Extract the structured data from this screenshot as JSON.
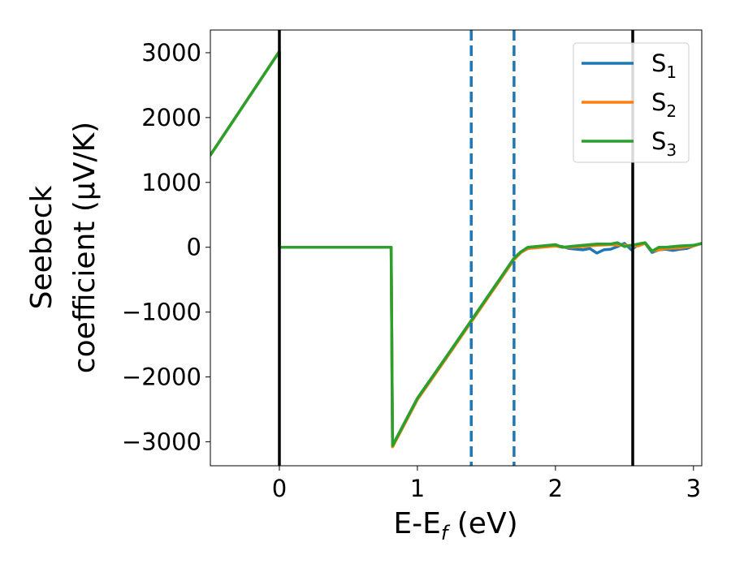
{
  "chart_data": {
    "type": "line",
    "xlabel_main": "E-E",
    "xlabel_sub": "f",
    "xlabel_unit": " (eV)",
    "ylabel_line1": "Seebeck",
    "ylabel_line2": "coefficient  (μV/K)",
    "xlim": [
      -0.5,
      3.06
    ],
    "ylim": [
      -3370,
      3350
    ],
    "x_ticks": [
      0,
      1,
      2,
      3
    ],
    "x_tick_labels": [
      "0",
      "1",
      "2",
      "3"
    ],
    "y_ticks": [
      3000,
      2000,
      1000,
      0,
      -1000,
      -2000,
      -3000
    ],
    "y_tick_labels": [
      "3000",
      "2000",
      "1000",
      "0",
      "−1000",
      "−2000",
      "−3000"
    ],
    "grid": false,
    "legend_position": "top-right",
    "vlines_solid": [
      0,
      2.56
    ],
    "vlines_dashed": [
      1.39,
      1.7
    ],
    "vline_solid_color": "#000000",
    "vline_dashed_color": "#1f77b4",
    "series": [
      {
        "name": "S",
        "name_sub": "1",
        "color": "#1f77b4",
        "x": [
          -0.5,
          0,
          0,
          0.81,
          0.82,
          1.0,
          1.2,
          1.4,
          1.6,
          1.7,
          1.75,
          1.8,
          1.9,
          2.0,
          2.05,
          2.1,
          2.2,
          2.25,
          2.3,
          2.35,
          2.4,
          2.45,
          2.5,
          2.55,
          2.6,
          2.65,
          2.7,
          2.75,
          2.8,
          2.85,
          2.9,
          2.95,
          3.0,
          3.06
        ],
        "y": [
          1420,
          3020,
          0,
          0,
          -3060,
          -2330,
          -1720,
          -1100,
          -480,
          -170,
          -70,
          -20,
          10,
          20,
          10,
          -20,
          -40,
          -20,
          -90,
          -40,
          -30,
          10,
          60,
          -40,
          40,
          60,
          -80,
          -40,
          -30,
          -50,
          -30,
          -20,
          20,
          60
        ]
      },
      {
        "name": "S",
        "name_sub": "2",
        "color": "#ff7f0e",
        "x": [
          -0.5,
          0,
          0,
          0.81,
          0.82,
          1.0,
          1.2,
          1.4,
          1.6,
          1.7,
          1.75,
          1.8,
          1.9,
          2.0,
          2.05,
          2.1,
          2.2,
          2.3,
          2.4,
          2.5,
          2.6,
          2.65,
          2.7,
          2.8,
          2.9,
          3.0,
          3.06
        ],
        "y": [
          1420,
          3020,
          0,
          0,
          -3080,
          -2350,
          -1740,
          -1120,
          -500,
          -190,
          -80,
          -20,
          0,
          20,
          0,
          0,
          10,
          30,
          40,
          30,
          20,
          60,
          -60,
          -20,
          -10,
          20,
          60
        ]
      },
      {
        "name": "S",
        "name_sub": "3",
        "color": "#2ca02c",
        "x": [
          -0.5,
          0,
          0,
          0.81,
          0.82,
          1.0,
          1.2,
          1.4,
          1.6,
          1.7,
          1.75,
          1.8,
          1.9,
          2.0,
          2.05,
          2.1,
          2.2,
          2.3,
          2.4,
          2.45,
          2.5,
          2.55,
          2.6,
          2.65,
          2.7,
          2.75,
          2.8,
          2.9,
          3.0,
          3.06
        ],
        "y": [
          1420,
          3020,
          0,
          0,
          -3060,
          -2330,
          -1720,
          -1100,
          -480,
          -170,
          -70,
          0,
          20,
          40,
          0,
          10,
          30,
          50,
          50,
          70,
          10,
          30,
          50,
          70,
          -60,
          0,
          0,
          20,
          30,
          60
        ]
      }
    ]
  }
}
